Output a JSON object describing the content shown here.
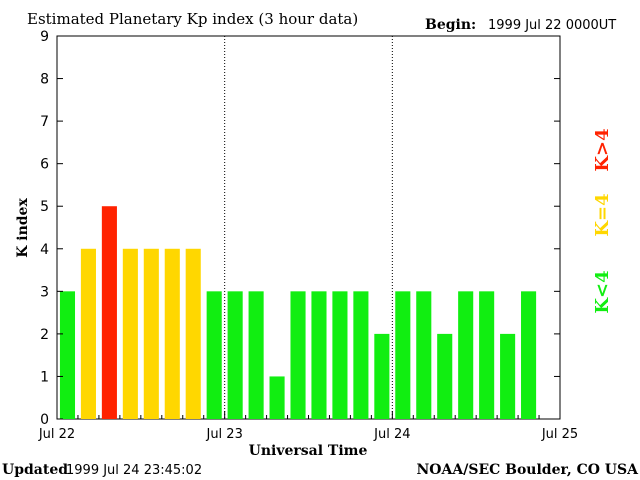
{
  "header": {
    "title": "Estimated Planetary Kp index (3 hour data)",
    "begin_label": "Begin:",
    "begin_value": "1999 Jul 22 0000UT"
  },
  "footer": {
    "updated_label": "Updated",
    "updated_value": "1999 Jul 24 23:45:02",
    "source": "NOAA/SEC Boulder, CO USA"
  },
  "legend": {
    "red_label": "K>4",
    "yellow_label": "K=4",
    "green_label": "K<4"
  },
  "colors": {
    "green": "#11ee11",
    "yellow": "#ffd700",
    "red": "#ff2200"
  },
  "chart_data": {
    "type": "bar",
    "title": "Estimated Planetary Kp index (3 hour data)",
    "xlabel": "Universal Time",
    "ylabel": "K index",
    "ylim": [
      0,
      9
    ],
    "y_ticks": [
      "0",
      "1",
      "2",
      "3",
      "4",
      "5",
      "6",
      "7",
      "8",
      "9"
    ],
    "x_tick_labels": [
      "Jul 22",
      "Jul 23",
      "Jul 24",
      "Jul 25"
    ],
    "x_interval_hours": 3,
    "values": [
      3,
      4,
      5,
      4,
      4,
      4,
      4,
      3,
      3,
      3,
      1,
      3,
      3,
      3,
      3,
      2,
      3,
      3,
      2,
      3,
      3,
      2,
      3
    ],
    "thresholds": {
      "below": "K<4",
      "equal": "K=4",
      "above": "K>4"
    }
  }
}
